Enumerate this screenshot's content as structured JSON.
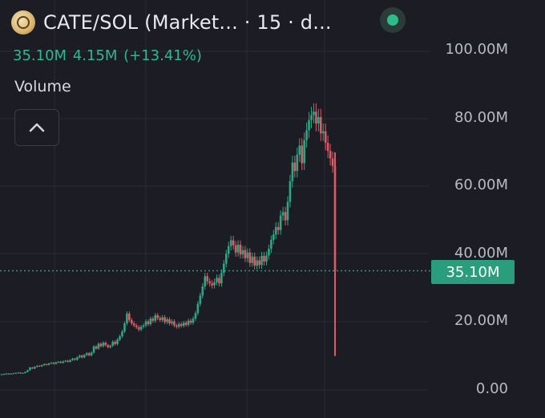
{
  "header": {
    "symbol_text": "CATE/SOL (Market...  · 15 · d...",
    "logo_icon": "token-logo-icon",
    "status_icon": "market-open-dot-icon",
    "status_color": "#2bbd8b"
  },
  "legend": {
    "ohlc_text": "35.10M  4.15M (+13.41%)",
    "volume_label": "Volume",
    "collapse_icon": "chevron-up-icon"
  },
  "colors": {
    "background": "#1b1c24",
    "up": "#2aa883",
    "down": "#e05862",
    "grid": "#2a2c36",
    "axis_text": "#b7bbc6",
    "price_line": "#2a9d7c"
  },
  "chart_data": {
    "type": "candlestick",
    "title": "",
    "xlabel": "",
    "ylabel": "",
    "ylim": [
      0,
      100000000
    ],
    "y_ticks": [
      "100.00M",
      "80.00M",
      "60.00M",
      "40.00M",
      "20.00M",
      "0.00"
    ],
    "y_tick_values": [
      100000000,
      80000000,
      60000000,
      40000000,
      20000000,
      0
    ],
    "grid": true,
    "current_price": 35100000,
    "current_price_label": "35.10M",
    "series": [
      {
        "values_m": [
          4.6,
          4.7,
          4.8,
          4.7,
          4.8,
          4.9,
          5.0,
          5.1,
          4.9,
          5.0,
          5.3,
          5.8,
          6.6,
          6.3,
          6.8,
          7.1,
          7.0,
          7.3,
          7.6,
          7.4,
          7.8,
          8.0,
          7.7,
          8.1,
          8.3,
          8.0,
          8.4,
          8.6,
          8.3,
          8.8,
          9.2,
          8.9,
          9.6,
          10.1,
          9.6,
          10.3,
          10.8,
          10.2,
          11.0,
          12.8,
          12.2,
          13.6,
          12.9,
          13.9,
          13.2,
          12.6,
          13.0,
          14.2,
          13.5,
          14.8,
          15.8,
          17.2,
          19.6,
          22.5,
          20.6,
          19.6,
          19.0,
          18.5,
          17.8,
          18.6,
          19.0,
          20.2,
          19.4,
          21.0,
          20.4,
          22.0,
          21.2,
          20.6,
          21.4,
          20.0,
          20.8,
          19.6,
          20.2,
          19.0,
          18.6,
          19.4,
          18.9,
          19.8,
          19.2,
          20.4,
          19.8,
          21.0,
          22.6,
          25.4,
          27.8,
          30.5,
          33.5,
          32.0,
          31.4,
          30.8,
          31.8,
          33.0,
          31.4,
          34.5,
          37.2,
          40.1,
          42.4,
          44.1,
          42.6,
          40.5,
          42.8,
          39.9,
          41.2,
          38.8,
          40.5,
          37.4,
          39.3,
          36.6,
          38.2,
          36.8,
          39.5,
          37.8,
          39.6,
          41.6,
          44.2,
          45.8,
          48.0,
          47.1,
          51.4,
          52.4,
          50.0,
          55.4,
          61.5,
          67.0,
          64.5,
          69.3,
          72.0,
          66.8,
          73.6,
          76.5,
          79.5,
          81.0,
          82.0,
          78.5,
          80.4,
          75.6,
          76.2,
          72.8,
          70.4,
          68.2,
          66.0,
          35.1
        ]
      }
    ]
  }
}
